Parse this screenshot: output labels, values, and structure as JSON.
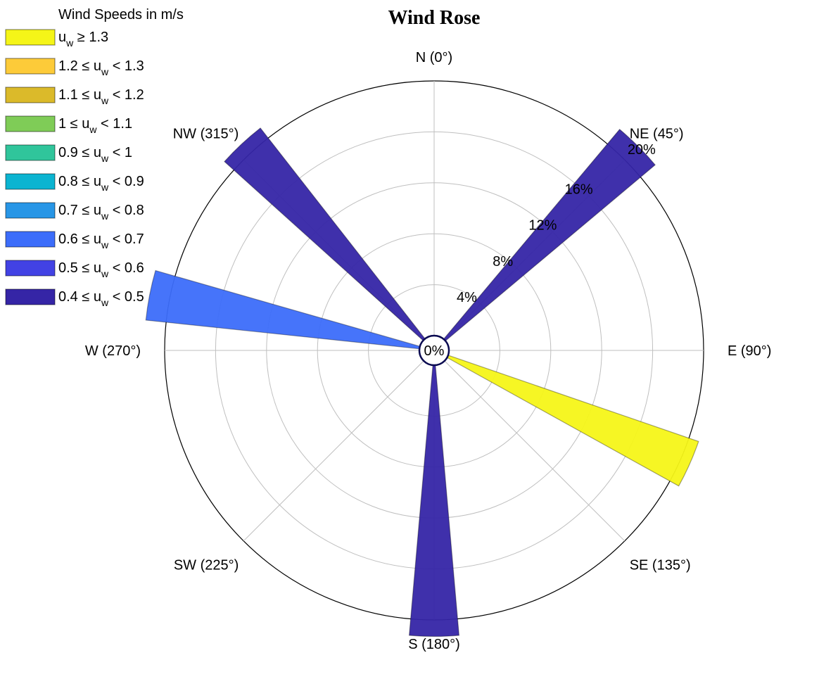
{
  "chart_data": {
    "type": "wind-rose",
    "title": "Wind Rose",
    "legend_title": "Wind Speeds in m/s",
    "legend_placement": "top-left",
    "center_label": "0%",
    "directions": [
      {
        "label": "N (0°)",
        "angle": 0
      },
      {
        "label": "NE (45°)",
        "angle": 45
      },
      {
        "label": "E (90°)",
        "angle": 90
      },
      {
        "label": "SE (135°)",
        "angle": 135
      },
      {
        "label": "S (180°)",
        "angle": 180
      },
      {
        "label": "SW (225°)",
        "angle": 225
      },
      {
        "label": "W (270°)",
        "angle": 270
      },
      {
        "label": "NW (315°)",
        "angle": 315
      }
    ],
    "radial_axis": {
      "max": 20,
      "rings": [
        4,
        8,
        12,
        16,
        20
      ],
      "tick_labels": [
        "4%",
        "8%",
        "12%",
        "16%",
        "20%"
      ],
      "label_angle": 45
    },
    "speed_bins": [
      {
        "pre": "u",
        "sub": "w",
        "post": " ≥ 1.3",
        "color": "#f5f518"
      },
      {
        "pre": "1.2 ≤ u",
        "sub": "w",
        "post": " < 1.3",
        "color": "#fdcb39"
      },
      {
        "pre": "1.1 ≤ u",
        "sub": "w",
        "post": " < 1.2",
        "color": "#dbba2a"
      },
      {
        "pre": "1 ≤ u",
        "sub": "w",
        "post": " < 1.1",
        "color": "#7fcc57"
      },
      {
        "pre": "0.9 ≤ u",
        "sub": "w",
        "post": " < 1",
        "color": "#30c59b"
      },
      {
        "pre": "0.8 ≤ u",
        "sub": "w",
        "post": " < 0.9",
        "color": "#0bb4d1"
      },
      {
        "pre": "0.7 ≤ u",
        "sub": "w",
        "post": " < 0.8",
        "color": "#2896e6"
      },
      {
        "pre": "0.6 ≤ u",
        "sub": "w",
        "post": " < 0.7",
        "color": "#3c6dfa"
      },
      {
        "pre": "0.5 ≤ u",
        "sub": "w",
        "post": " < 0.6",
        "color": "#4242e4"
      },
      {
        "pre": "0.4 ≤ u",
        "sub": "w",
        "post": " < 0.5",
        "color": "#3525a6"
      }
    ],
    "series": [
      {
        "direction": 45,
        "bin": 9,
        "frequency": 21.5
      },
      {
        "direction": 114,
        "bin": 0,
        "frequency": 20.8
      },
      {
        "direction": 180,
        "bin": 9,
        "frequency": 21.3
      },
      {
        "direction": 281,
        "bin": 7,
        "frequency": 21.6
      },
      {
        "direction": 317,
        "bin": 9,
        "frequency": 21.0
      }
    ],
    "wedge_width_deg": 10,
    "grid": true
  }
}
